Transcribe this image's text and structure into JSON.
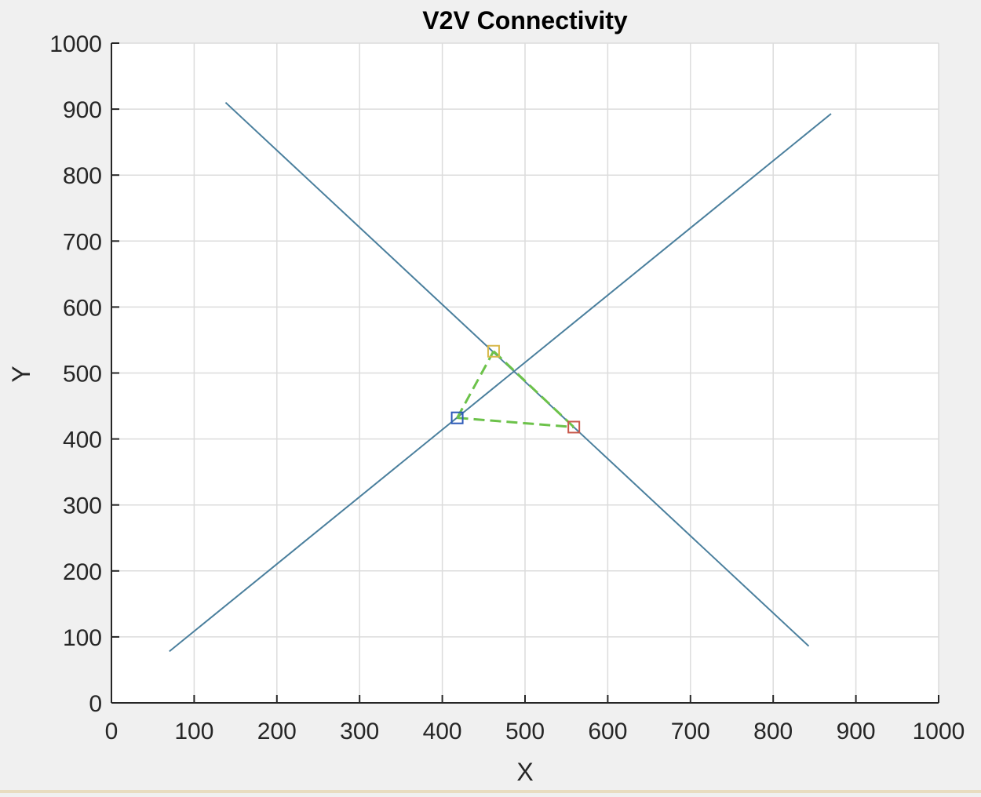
{
  "chart_data": {
    "type": "line",
    "title": "V2V Connectivity",
    "xlabel": "X",
    "ylabel": "Y",
    "xlim": [
      0,
      1000
    ],
    "ylim": [
      0,
      1000
    ],
    "xticks": [
      0,
      100,
      200,
      300,
      400,
      500,
      600,
      700,
      800,
      900,
      1000
    ],
    "yticks": [
      0,
      100,
      200,
      300,
      400,
      500,
      600,
      700,
      800,
      900,
      1000
    ],
    "grid": true,
    "roads": [
      {
        "x": [
          70,
          870
        ],
        "y": [
          78,
          893
        ]
      },
      {
        "x": [
          138,
          843
        ],
        "y": [
          910,
          86
        ]
      }
    ],
    "vehicles": [
      {
        "x": 418,
        "y": 432,
        "color": "#2c59b8"
      },
      {
        "x": 462,
        "y": 533,
        "color": "#d8b84a"
      },
      {
        "x": 559,
        "y": 418,
        "color": "#c8584a"
      }
    ],
    "links": [
      {
        "x": [
          418,
          559
        ],
        "y": [
          432,
          418
        ]
      },
      {
        "x": [
          418,
          462
        ],
        "y": [
          432,
          533
        ]
      },
      {
        "x": [
          462,
          559
        ],
        "y": [
          533,
          418
        ]
      }
    ],
    "colors": {
      "road": "#4a7f9d",
      "link": "#6cc24a",
      "grid": "#dcdcdc",
      "axis": "#262626"
    }
  }
}
